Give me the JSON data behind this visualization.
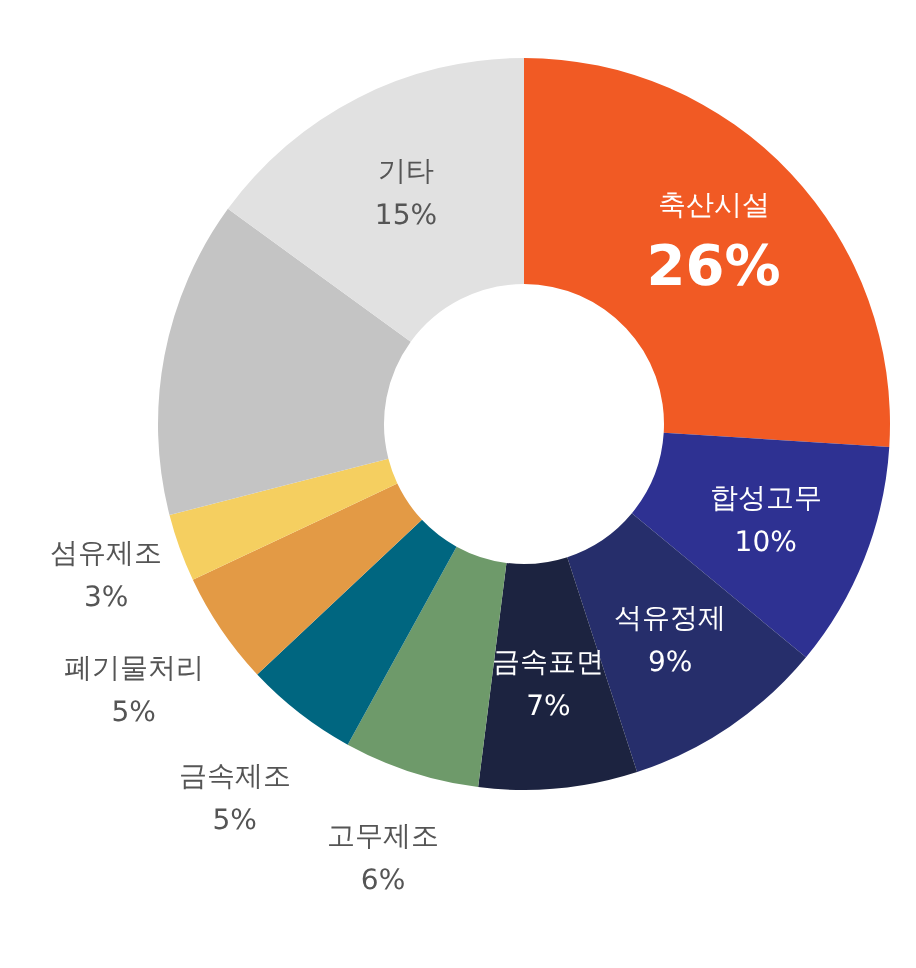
{
  "chart_data": {
    "type": "donut",
    "categories": [
      "축산시설",
      "합성고무",
      "석유정제",
      "금속표면",
      "고무제조",
      "금속제조",
      "폐기물처리",
      "섬유제조",
      null,
      "기타"
    ],
    "values": [
      26,
      10,
      9,
      7,
      6,
      5,
      5,
      3,
      14,
      15
    ],
    "value_labels": [
      "26%",
      "10%",
      "9%",
      "7%",
      "6%",
      "5%",
      "5%",
      "3%",
      null,
      "15%"
    ],
    "colors": [
      "#f15a24",
      "#2e3192",
      "#262e6b",
      "#1c2340",
      "#6e9a6a",
      "#006680",
      "#e39a45",
      "#f5cf60",
      "#c4c4c4",
      "#e1e1e1"
    ]
  }
}
